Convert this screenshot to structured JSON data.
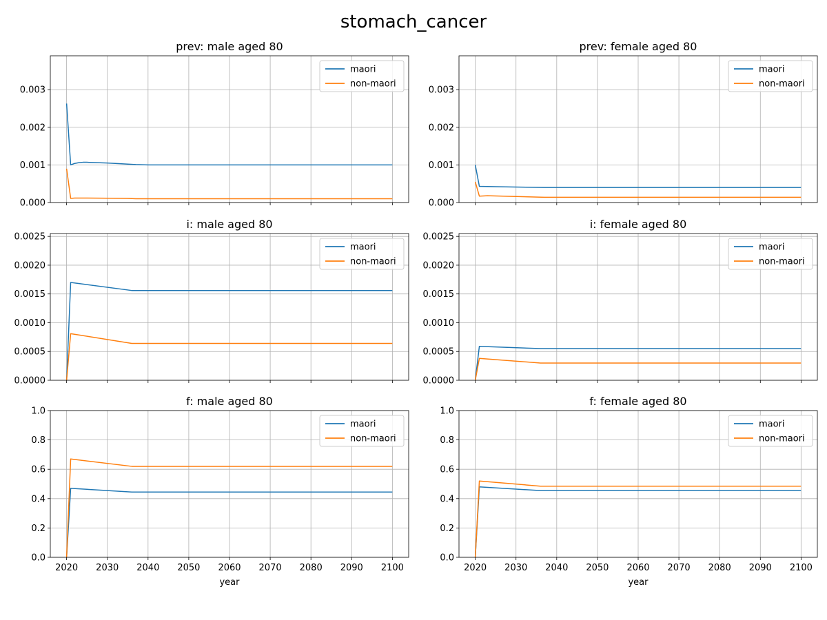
{
  "figure": {
    "title": "stomach_cancer",
    "colors": {
      "maori": "#1f77b4",
      "non_maori": "#ff7f0e",
      "grid": "#b0b0b0"
    }
  },
  "chart_data": [
    {
      "type": "line",
      "title": "prev: male aged 80",
      "xlabel": "",
      "ylabel": "",
      "xlim": [
        2016,
        2104
      ],
      "ylim": [
        0,
        0.0039
      ],
      "xticks": [
        2020,
        2030,
        2040,
        2050,
        2060,
        2070,
        2080,
        2090,
        2100
      ],
      "yticks": [
        "0.000",
        "0.001",
        "0.002",
        "0.003"
      ],
      "ytick_values": [
        0,
        0.001,
        0.002,
        0.003
      ],
      "show_xtick_labels": false,
      "grid": true,
      "legend": "upper right",
      "series": [
        {
          "name": "maori",
          "color": "#1f77b4",
          "x": [
            2020,
            2021,
            2022,
            2023,
            2024,
            2025,
            2030,
            2037,
            2040,
            2100
          ],
          "y": [
            0.00263,
            0.001,
            0.00104,
            0.00106,
            0.00107,
            0.00107,
            0.00105,
            0.00101,
            0.001,
            0.001
          ]
        },
        {
          "name": "non-maori",
          "color": "#ff7f0e",
          "x": [
            2020,
            2021,
            2022,
            2025,
            2035,
            2037,
            2100
          ],
          "y": [
            0.0009,
            0.00011,
            0.00012,
            0.00012,
            0.00011,
            0.0001,
            0.0001
          ]
        }
      ]
    },
    {
      "type": "line",
      "title": "prev: female aged 80",
      "xlabel": "",
      "ylabel": "",
      "xlim": [
        2016,
        2104
      ],
      "ylim": [
        0,
        0.0039
      ],
      "xticks": [
        2020,
        2030,
        2040,
        2050,
        2060,
        2070,
        2080,
        2090,
        2100
      ],
      "yticks": [
        "0.000",
        "0.001",
        "0.002",
        "0.003"
      ],
      "ytick_values": [
        0,
        0.001,
        0.002,
        0.003
      ],
      "show_xtick_labels": false,
      "grid": true,
      "legend": "upper right",
      "series": [
        {
          "name": "maori",
          "color": "#1f77b4",
          "x": [
            2020,
            2021,
            2025,
            2037,
            2100
          ],
          "y": [
            0.001,
            0.00043,
            0.00042,
            0.0004,
            0.0004
          ]
        },
        {
          "name": "non-maori",
          "color": "#ff7f0e",
          "x": [
            2020,
            2021,
            2023,
            2030,
            2037,
            2100
          ],
          "y": [
            0.00055,
            0.00017,
            0.00018,
            0.00016,
            0.00014,
            0.00014
          ]
        }
      ]
    },
    {
      "type": "line",
      "title": "i: male aged 80",
      "xlabel": "",
      "ylabel": "",
      "xlim": [
        2016,
        2104
      ],
      "ylim": [
        0,
        0.00255
      ],
      "xticks": [
        2020,
        2030,
        2040,
        2050,
        2060,
        2070,
        2080,
        2090,
        2100
      ],
      "yticks": [
        "0.0000",
        "0.0005",
        "0.0010",
        "0.0015",
        "0.0020",
        "0.0025"
      ],
      "ytick_values": [
        0,
        0.0005,
        0.001,
        0.0015,
        0.002,
        0.0025
      ],
      "show_xtick_labels": false,
      "grid": true,
      "legend": "upper right",
      "series": [
        {
          "name": "maori",
          "color": "#1f77b4",
          "x": [
            2020,
            2021,
            2036,
            2100
          ],
          "y": [
            0,
            0.0017,
            0.00156,
            0.00156
          ]
        },
        {
          "name": "non-maori",
          "color": "#ff7f0e",
          "x": [
            2020,
            2021,
            2036,
            2100
          ],
          "y": [
            0,
            0.00081,
            0.00064,
            0.00064
          ]
        }
      ]
    },
    {
      "type": "line",
      "title": "i: female aged 80",
      "xlabel": "",
      "ylabel": "",
      "xlim": [
        2016,
        2104
      ],
      "ylim": [
        0,
        0.00255
      ],
      "xticks": [
        2020,
        2030,
        2040,
        2050,
        2060,
        2070,
        2080,
        2090,
        2100
      ],
      "yticks": [
        "0.0000",
        "0.0005",
        "0.0010",
        "0.0015",
        "0.0020",
        "0.0025"
      ],
      "ytick_values": [
        0,
        0.0005,
        0.001,
        0.0015,
        0.002,
        0.0025
      ],
      "show_xtick_labels": false,
      "grid": true,
      "legend": "upper right",
      "series": [
        {
          "name": "maori",
          "color": "#1f77b4",
          "x": [
            2020,
            2021,
            2036,
            2100
          ],
          "y": [
            0,
            0.00059,
            0.00055,
            0.00055
          ]
        },
        {
          "name": "non-maori",
          "color": "#ff7f0e",
          "x": [
            2020,
            2021,
            2036,
            2100
          ],
          "y": [
            0,
            0.00038,
            0.0003,
            0.0003
          ]
        }
      ]
    },
    {
      "type": "line",
      "title": "f: male aged 80",
      "xlabel": "year",
      "ylabel": "",
      "xlim": [
        2016,
        2104
      ],
      "ylim": [
        0,
        1.0
      ],
      "xticks": [
        2020,
        2030,
        2040,
        2050,
        2060,
        2070,
        2080,
        2090,
        2100
      ],
      "yticks": [
        "0.0",
        "0.2",
        "0.4",
        "0.6",
        "0.8",
        "1.0"
      ],
      "ytick_values": [
        0,
        0.2,
        0.4,
        0.6,
        0.8,
        1.0
      ],
      "show_xtick_labels": true,
      "grid": true,
      "legend": "upper right",
      "series": [
        {
          "name": "maori",
          "color": "#1f77b4",
          "x": [
            2020,
            2021,
            2036,
            2100
          ],
          "y": [
            0,
            0.47,
            0.445,
            0.445
          ]
        },
        {
          "name": "non-maori",
          "color": "#ff7f0e",
          "x": [
            2020,
            2021,
            2036,
            2100
          ],
          "y": [
            0,
            0.67,
            0.62,
            0.62
          ]
        }
      ]
    },
    {
      "type": "line",
      "title": "f: female aged 80",
      "xlabel": "year",
      "ylabel": "",
      "xlim": [
        2016,
        2104
      ],
      "ylim": [
        0,
        1.0
      ],
      "xticks": [
        2020,
        2030,
        2040,
        2050,
        2060,
        2070,
        2080,
        2090,
        2100
      ],
      "yticks": [
        "0.0",
        "0.2",
        "0.4",
        "0.6",
        "0.8",
        "1.0"
      ],
      "ytick_values": [
        0,
        0.2,
        0.4,
        0.6,
        0.8,
        1.0
      ],
      "show_xtick_labels": true,
      "grid": true,
      "legend": "upper right",
      "series": [
        {
          "name": "maori",
          "color": "#1f77b4",
          "x": [
            2020,
            2021,
            2036,
            2100
          ],
          "y": [
            0,
            0.48,
            0.455,
            0.455
          ]
        },
        {
          "name": "non-maori",
          "color": "#ff7f0e",
          "x": [
            2020,
            2021,
            2036,
            2100
          ],
          "y": [
            0,
            0.52,
            0.485,
            0.485
          ]
        }
      ]
    }
  ]
}
